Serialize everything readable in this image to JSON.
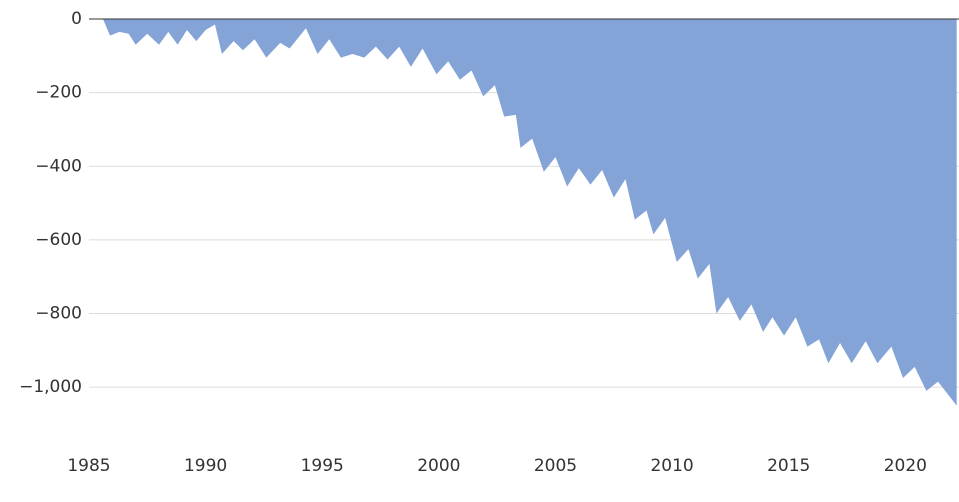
{
  "chart_data": {
    "type": "area",
    "color": "#84a3d6",
    "x": [
      1985.6,
      1985.9,
      1986.3,
      1986.7,
      1987.0,
      1987.5,
      1988.0,
      1988.4,
      1988.8,
      1989.2,
      1989.6,
      1990.0,
      1990.4,
      1990.7,
      1991.2,
      1991.6,
      1992.1,
      1992.6,
      1993.2,
      1993.6,
      1994.3,
      1994.8,
      1995.3,
      1995.8,
      1996.3,
      1996.8,
      1997.3,
      1997.8,
      1998.3,
      1998.8,
      1999.3,
      1999.9,
      2000.4,
      2000.9,
      2001.4,
      2001.9,
      2002.4,
      2002.8,
      2003.3,
      2003.5,
      2004.0,
      2004.5,
      2005.0,
      2005.5,
      2006.0,
      2006.5,
      2007.0,
      2007.5,
      2008.0,
      2008.4,
      2008.9,
      2009.2,
      2009.7,
      2010.2,
      2010.7,
      2011.1,
      2011.6,
      2011.9,
      2012.4,
      2012.9,
      2013.4,
      2013.9,
      2014.3,
      2014.8,
      2015.3,
      2015.8,
      2016.3,
      2016.7,
      2017.2,
      2017.7,
      2018.3,
      2018.8,
      2019.4,
      2019.9,
      2020.4,
      2020.9,
      2021.4,
      2022.2
    ],
    "values": [
      0,
      -45,
      -35,
      -40,
      -70,
      -40,
      -70,
      -35,
      -70,
      -30,
      -60,
      -30,
      -15,
      -95,
      -60,
      -85,
      -55,
      -105,
      -65,
      -80,
      -25,
      -95,
      -55,
      -105,
      -95,
      -105,
      -75,
      -110,
      -75,
      -130,
      -80,
      -150,
      -115,
      -165,
      -140,
      -210,
      -180,
      -265,
      -260,
      -350,
      -325,
      -415,
      -375,
      -455,
      -405,
      -450,
      -410,
      -485,
      -435,
      -545,
      -520,
      -585,
      -540,
      -660,
      -625,
      -705,
      -665,
      -800,
      -755,
      -820,
      -775,
      -850,
      -810,
      -860,
      -810,
      -890,
      -870,
      -935,
      -880,
      -935,
      -875,
      -935,
      -890,
      -975,
      -945,
      -1010,
      -985,
      -1050
    ],
    "xlim": [
      1985,
      2022.3
    ],
    "xticks": [
      1985,
      1990,
      1995,
      2000,
      2005,
      2010,
      2015,
      2020
    ],
    "ylim": [
      -1100,
      0
    ],
    "yticks": [
      0,
      {
        "value": -200,
        "label": "−200"
      },
      {
        "value": -400,
        "label": "−400"
      },
      {
        "value": -600,
        "label": "−600"
      },
      {
        "value": -800,
        "label": "−800"
      },
      {
        "value": -1000,
        "label": "−1,000"
      }
    ],
    "grid": true
  }
}
